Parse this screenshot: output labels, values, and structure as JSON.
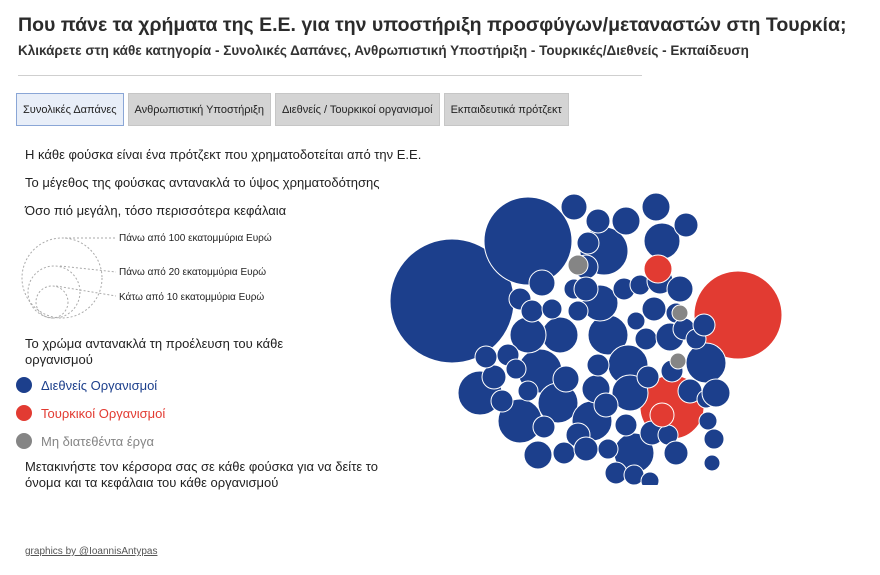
{
  "header": {
    "title": "Που πάνε τα χρήματα της Ε.Ε. για την υποστήριξη προσφύγων/μεταναστών στη Τουρκία;",
    "subtitle": "Κλικάρετε στη κάθε κατηγορία - Συνολικές Δαπάνες, Ανθρωπιστική Υποστήριξη - Τουρκικές/Διεθνείς - Εκπαίδευση"
  },
  "tabs": [
    {
      "label": "Συνολικές Δαπάνες",
      "active": true
    },
    {
      "label": "Ανθρωπιστική Υποστήριξη",
      "active": false
    },
    {
      "label": "Διεθνείς / Τουρκικοί οργανισμοί",
      "active": false
    },
    {
      "label": "Εκπαιδευτικά πρότζεκτ",
      "active": false
    }
  ],
  "info": {
    "line1": "Η κάθε φούσκα είναι ένα πρότζεκτ που χρηματοδοτείται από την Ε.Ε.",
    "line2": "Το μέγεθος της φούσκας αντανακλά το ύψος χρηματοδότησης",
    "line3": "Όσο πιό μεγάλη, τόσο περισσότερα κεφάλαια"
  },
  "size_legend": {
    "large": "Πάνω από 100 εκατομμύρια Ευρώ",
    "medium": "Πάνω από 20 εκατομμύρια Ευρώ",
    "small": "Κάτω από 10 εκατομμύρια Ευρώ"
  },
  "color_legend": {
    "title": "Το χρώμα αντανακλά τη προέλευση του κάθε οργανισμού",
    "items": [
      {
        "label": "Διεθνείς Οργανισμοί",
        "color": "#1c3f8c"
      },
      {
        "label": "Τουρκικοί Οργανισμοί",
        "color": "#e23b32"
      },
      {
        "label": "Μη διατεθέντα έργα",
        "color": "#858585"
      }
    ]
  },
  "hover_note": "Μετακινήστε τον κέρσορα σας σε κάθε φούσκα για να δείτε το όνομα και τα κεφάλαια του κάθε οργανισμού",
  "credit": "graphics by @IoannisAntypas",
  "chart_data": {
    "type": "bubble",
    "categories": [
      "Διεθνείς Οργανισμοί",
      "Τουρκικοί Οργανισμοί",
      "Μη διατεθέντα έργα"
    ],
    "colors": {
      "international": "#1c3f8c",
      "turkish": "#e23b32",
      "unallocated": "#858585"
    },
    "bubbles": [
      {
        "origin": "international",
        "level": "large"
      },
      {
        "origin": "international",
        "level": "large"
      },
      {
        "origin": "turkish",
        "level": "large"
      },
      {
        "origin": "turkish",
        "level": "medium"
      },
      {
        "origin": "international",
        "level": "medium"
      },
      {
        "origin": "international",
        "level": "medium"
      },
      {
        "origin": "international",
        "level": "medium"
      },
      {
        "origin": "international",
        "level": "medium"
      },
      {
        "origin": "international",
        "level": "medium"
      },
      {
        "origin": "international",
        "level": "medium"
      },
      {
        "origin": "international",
        "level": "medium"
      },
      {
        "origin": "international",
        "level": "medium"
      },
      {
        "origin": "international",
        "level": "medium"
      },
      {
        "origin": "international",
        "level": "medium"
      },
      {
        "origin": "international",
        "level": "medium"
      },
      {
        "origin": "international",
        "level": "medium"
      },
      {
        "origin": "international",
        "level": "medium"
      },
      {
        "origin": "international",
        "level": "medium"
      },
      {
        "origin": "international",
        "level": "medium"
      },
      {
        "origin": "international",
        "level": "medium"
      },
      {
        "origin": "international",
        "level": "medium"
      },
      {
        "origin": "international",
        "level": "small"
      },
      {
        "origin": "international",
        "level": "small"
      },
      {
        "origin": "international",
        "level": "small"
      },
      {
        "origin": "international",
        "level": "small"
      },
      {
        "origin": "international",
        "level": "small"
      },
      {
        "origin": "international",
        "level": "small"
      },
      {
        "origin": "international",
        "level": "small"
      },
      {
        "origin": "international",
        "level": "small"
      },
      {
        "origin": "international",
        "level": "small"
      },
      {
        "origin": "international",
        "level": "small"
      },
      {
        "origin": "international",
        "level": "small"
      },
      {
        "origin": "international",
        "level": "small"
      },
      {
        "origin": "international",
        "level": "small"
      },
      {
        "origin": "international",
        "level": "small"
      },
      {
        "origin": "international",
        "level": "small"
      },
      {
        "origin": "international",
        "level": "small"
      },
      {
        "origin": "international",
        "level": "small"
      },
      {
        "origin": "international",
        "level": "small"
      },
      {
        "origin": "international",
        "level": "small"
      },
      {
        "origin": "international",
        "level": "small"
      },
      {
        "origin": "international",
        "level": "small"
      },
      {
        "origin": "international",
        "level": "small"
      },
      {
        "origin": "international",
        "level": "small"
      },
      {
        "origin": "international",
        "level": "small"
      },
      {
        "origin": "international",
        "level": "small"
      },
      {
        "origin": "international",
        "level": "small"
      },
      {
        "origin": "international",
        "level": "small"
      },
      {
        "origin": "international",
        "level": "small"
      },
      {
        "origin": "international",
        "level": "small"
      },
      {
        "origin": "international",
        "level": "small"
      },
      {
        "origin": "international",
        "level": "small"
      },
      {
        "origin": "international",
        "level": "small"
      },
      {
        "origin": "international",
        "level": "small"
      },
      {
        "origin": "international",
        "level": "small"
      },
      {
        "origin": "international",
        "level": "small"
      },
      {
        "origin": "international",
        "level": "small"
      },
      {
        "origin": "international",
        "level": "small"
      },
      {
        "origin": "international",
        "level": "small"
      },
      {
        "origin": "international",
        "level": "small"
      },
      {
        "origin": "international",
        "level": "small"
      },
      {
        "origin": "international",
        "level": "small"
      },
      {
        "origin": "international",
        "level": "small"
      },
      {
        "origin": "international",
        "level": "small"
      },
      {
        "origin": "international",
        "level": "small"
      },
      {
        "origin": "international",
        "level": "small"
      },
      {
        "origin": "international",
        "level": "small"
      },
      {
        "origin": "international",
        "level": "small"
      },
      {
        "origin": "international",
        "level": "small"
      },
      {
        "origin": "international",
        "level": "small"
      },
      {
        "origin": "international",
        "level": "small"
      },
      {
        "origin": "international",
        "level": "small"
      },
      {
        "origin": "international",
        "level": "small"
      },
      {
        "origin": "international",
        "level": "small"
      },
      {
        "origin": "international",
        "level": "small"
      },
      {
        "origin": "international",
        "level": "small"
      },
      {
        "origin": "international",
        "level": "small"
      },
      {
        "origin": "international",
        "level": "small"
      },
      {
        "origin": "turkish",
        "level": "small"
      },
      {
        "origin": "turkish",
        "level": "small"
      },
      {
        "origin": "unallocated",
        "level": "small"
      },
      {
        "origin": "unallocated",
        "level": "small"
      },
      {
        "origin": "unallocated",
        "level": "small"
      }
    ]
  }
}
